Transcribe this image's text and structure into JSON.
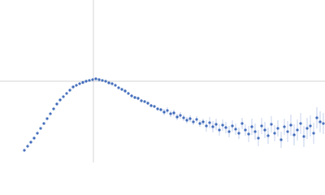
{
  "chart_data": {
    "type": "scatter",
    "xlim": [
      0,
      400
    ],
    "ylim": [
      0,
      200
    ],
    "reference_lines": {
      "x": 115,
      "y": 100
    },
    "color": "#3a66b8",
    "error_color": "#b4c4e6",
    "reference_color": "#d0d0d0",
    "x": [
      30,
      34,
      38,
      42,
      46,
      50,
      54,
      58,
      62,
      66,
      70,
      74,
      78,
      82,
      86,
      90,
      94,
      98,
      102,
      106,
      110,
      114,
      118,
      122,
      126,
      130,
      134,
      138,
      142,
      146,
      150,
      154,
      158,
      162,
      166,
      170,
      174,
      178,
      182,
      186,
      190,
      194,
      198,
      202,
      206,
      210,
      214,
      218,
      222,
      226,
      230,
      234,
      238,
      242,
      246,
      250,
      254,
      258,
      262,
      266,
      270,
      274,
      278,
      282,
      286,
      290,
      294,
      298,
      302,
      306,
      310,
      314,
      318,
      322,
      326,
      330,
      334,
      338,
      342,
      346,
      350,
      354,
      358,
      362,
      366,
      370,
      374,
      378,
      382,
      386,
      390,
      394,
      398
    ],
    "values": [
      15,
      20,
      25,
      30,
      36,
      42,
      48,
      54,
      60,
      66,
      72,
      77,
      81,
      85,
      89,
      93,
      95,
      97,
      98.5,
      100,
      101,
      102,
      103,
      102,
      101,
      100,
      98,
      97,
      95,
      92,
      90,
      88,
      85,
      82,
      80,
      79,
      76,
      75,
      73,
      70,
      69,
      66,
      65,
      62,
      64,
      60,
      61,
      56,
      58,
      55,
      52,
      54,
      50,
      53,
      48,
      50,
      45,
      49,
      44,
      47,
      40,
      46,
      43,
      38,
      45,
      41,
      36,
      48,
      40,
      35,
      44,
      38,
      30,
      45,
      40,
      33,
      47,
      36,
      42,
      28,
      44,
      38,
      46,
      34,
      40,
      48,
      32,
      42,
      45,
      36,
      55,
      50,
      48
    ],
    "errors": [
      0.5,
      0.5,
      0.5,
      0.5,
      0.5,
      0.5,
      0.5,
      0.5,
      0.5,
      0.5,
      0.5,
      0.5,
      0.5,
      0.5,
      0.5,
      1,
      1,
      1,
      1,
      1,
      1,
      1,
      1,
      1,
      1,
      1,
      1,
      1,
      1,
      1,
      1,
      2,
      2,
      2,
      2,
      2,
      2,
      2,
      2,
      2,
      2,
      2,
      2,
      4,
      4,
      4,
      4,
      4,
      4,
      4,
      4,
      4,
      4,
      4,
      4,
      4,
      7,
      7,
      7,
      7,
      7,
      7,
      7,
      7,
      7,
      7,
      7,
      7,
      7,
      10,
      10,
      10,
      10,
      10,
      10,
      10,
      10,
      10,
      10,
      10,
      10,
      13,
      13,
      13,
      13,
      13,
      13,
      13,
      13,
      13,
      13,
      13,
      13
    ]
  }
}
